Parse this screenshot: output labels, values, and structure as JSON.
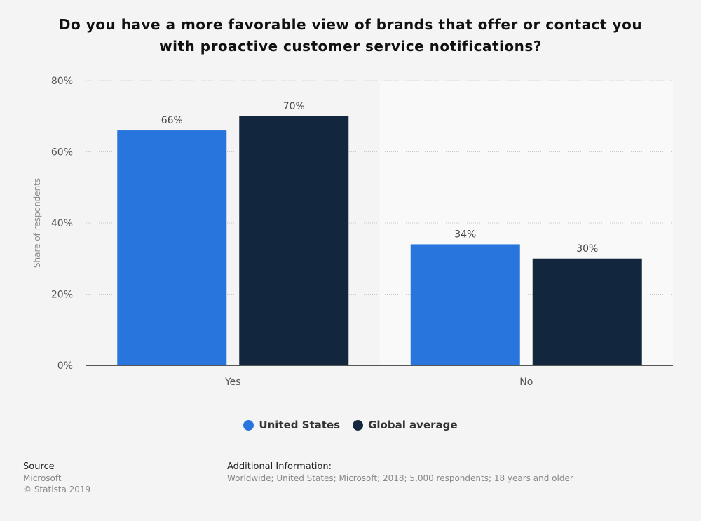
{
  "title": "Do you have a more favorable view of brands that offer or contact you with proactive customer service notifications?",
  "chart_data": {
    "type": "bar",
    "title": "Do you have a more favorable view of brands that offer or contact you with proactive customer service notifications?",
    "categories": [
      "Yes",
      "No"
    ],
    "series": [
      {
        "name": "United States",
        "values": [
          66,
          34
        ],
        "color": "#2876dd"
      },
      {
        "name": "Global average",
        "values": [
          70,
          30
        ],
        "color": "#12273e"
      }
    ],
    "ylabel": "Share of respondents",
    "ylim": [
      0,
      80
    ],
    "yticks": [
      "0%",
      "20%",
      "40%",
      "60%",
      "80%"
    ],
    "data_labels": [
      [
        "66%",
        "34%"
      ],
      [
        "70%",
        "30%"
      ]
    ],
    "grid": true,
    "legend": "bottom"
  },
  "footer": {
    "source_label": "Source",
    "source": "Microsoft",
    "copyright": "© Statista 2019",
    "info_label": "Additional Information:",
    "info": "Worldwide; United States; Microsoft; 2018; 5,000 respondents; 18 years and older"
  }
}
